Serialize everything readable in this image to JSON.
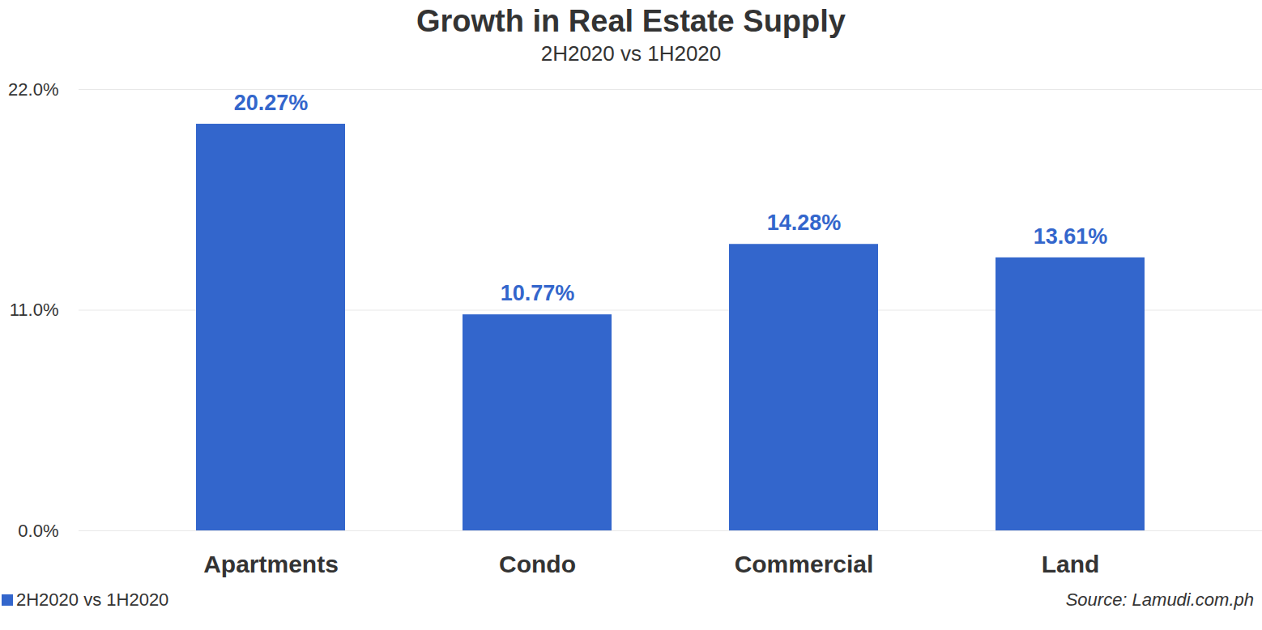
{
  "chart_data": {
    "type": "bar",
    "title": "Growth in Real Estate Supply",
    "subtitle": "2H2020 vs 1H2020",
    "categories": [
      "Apartments",
      "Condo",
      "Commercial",
      "Land"
    ],
    "series": [
      {
        "name": "2H2020 vs 1H2020",
        "color": "#3366cc",
        "values": [
          20.27,
          10.77,
          14.28,
          13.61
        ],
        "value_labels": [
          "20.27%",
          "10.77%",
          "14.28%",
          "13.61%"
        ]
      }
    ],
    "ylim": [
      0,
      22
    ],
    "yticks": [
      {
        "value": 0,
        "label": "0.0%"
      },
      {
        "value": 11,
        "label": "11.0%"
      },
      {
        "value": 22,
        "label": "22.0%"
      }
    ],
    "grid": true,
    "data_labels": true,
    "legend": "bottom-left",
    "annotations": [
      "Source: Lamudi.com.ph"
    ]
  }
}
